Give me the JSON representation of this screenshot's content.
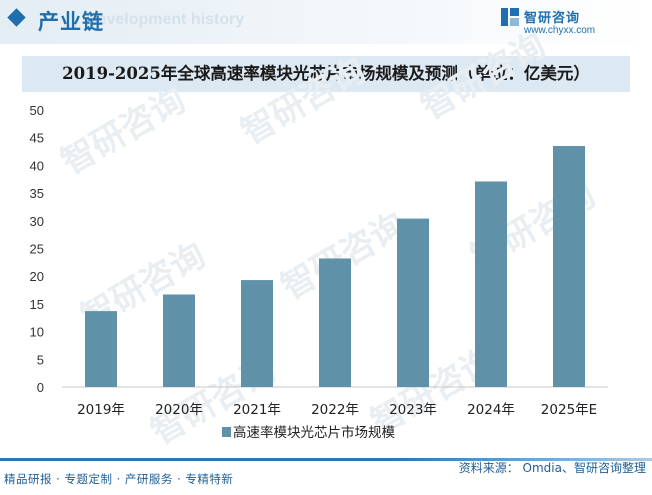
{
  "header": {
    "section_title": "产业链",
    "watermark_text": "Development history",
    "logo_name": "智研咨询",
    "logo_url": "www.chyxx.com",
    "logo_color": "#1f6fae"
  },
  "watermark_brand": "智研咨询",
  "footer": {
    "left_text": "精品研报 · 专题定制 · 产研服务 · 专精特新",
    "right_text": "资料来源： Omdia、智研咨询整理"
  },
  "chart_data": {
    "type": "bar",
    "title": "2019-2025年全球高速率模块光芯片市场规模及预测（单位：亿美元）",
    "categories": [
      "2019年",
      "2020年",
      "2021年",
      "2022年",
      "2023年",
      "2024年",
      "2025年E"
    ],
    "series": [
      {
        "name": "高速率模块光芯片市场规模",
        "values": [
          13.7,
          16.7,
          19.3,
          23.2,
          30.4,
          37.1,
          43.5
        ],
        "color": "#5f91a9"
      }
    ],
    "ylim": [
      0,
      50
    ],
    "yticks": [
      0,
      5,
      10,
      15,
      20,
      25,
      30,
      35,
      40,
      45,
      50
    ],
    "grid": false,
    "legend": "bottom"
  }
}
